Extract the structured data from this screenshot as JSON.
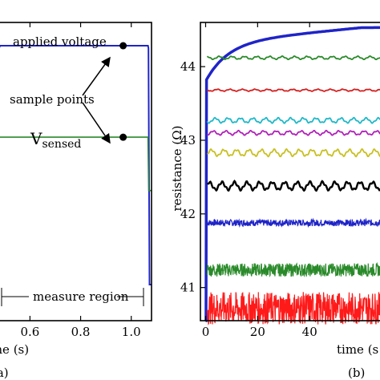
{
  "chart_data": [
    {
      "panel_label": "(a)",
      "type": "line",
      "xlabel": "time (s)",
      "xlim": [
        0.45,
        1.08
      ],
      "xticks": [
        "0.6",
        "0.8",
        "1.0"
      ],
      "xtick_values": [
        0.6,
        0.8,
        1.0
      ],
      "ylim": [
        0,
        1
      ],
      "series": [
        {
          "color": "#1f24c8",
          "x": [
            0.45,
            0.476,
            0.478,
            0.482,
            1.0,
            1.066,
            1.068,
            1.072,
            1.08
          ],
          "y": [
            0.0,
            0.0,
            0.93,
            0.94,
            0.94,
            0.94,
            0.93,
            0.0,
            0.0
          ]
        },
        {
          "color": "#2a8a2a",
          "x": [
            0.45,
            0.476,
            0.479,
            1.066,
            1.069,
            1.08
          ],
          "y": [
            0.37,
            0.37,
            0.58,
            0.58,
            0.37,
            0.37
          ]
        }
      ],
      "markers": [
        {
          "x": 0.968,
          "y": 0.94
        },
        {
          "x": 0.968,
          "y": 0.58
        }
      ],
      "annotations": {
        "applied_voltage": "applied voltage",
        "sample_points": "sample points",
        "v_main": "V",
        "v_sub": "sensed",
        "measure_region": "measure region"
      }
    },
    {
      "panel_label": "(b)",
      "type": "line",
      "xlabel": "time (s",
      "ylabel": "resistance (Ω)",
      "xlim": [
        -2,
        72
      ],
      "xticks": [
        "0",
        "20",
        "40"
      ],
      "xtick_values": [
        0,
        20,
        40
      ],
      "ylim": [
        40.55,
        44.6
      ],
      "yticks": [
        "41",
        "42",
        "43",
        "44"
      ],
      "ytick_values": [
        41,
        42,
        43,
        44
      ],
      "rise_curve": {
        "color": "#1f24c8",
        "start": 40.55,
        "jump_to": 43.8,
        "end": 44.53
      },
      "series": [
        {
          "color": "#1f24c8",
          "level": 44.53,
          "noise": 0.0,
          "style": "rise"
        },
        {
          "color": "#2a8a2a",
          "level": 44.12,
          "noise": 0.018,
          "style": "wave"
        },
        {
          "color": "#d42020",
          "level": 43.68,
          "noise": 0.012,
          "style": "wave"
        },
        {
          "color": "#1fb8c8",
          "level": 43.27,
          "noise": 0.03,
          "style": "wave"
        },
        {
          "color": "#b020b8",
          "level": 43.1,
          "noise": 0.025,
          "style": "wave"
        },
        {
          "color": "#c8c020",
          "level": 42.83,
          "noise": 0.04,
          "style": "wave"
        },
        {
          "color": "#000000",
          "level": 42.38,
          "noise": 0.05,
          "style": "wave"
        },
        {
          "color": "#1f24c8",
          "level": 41.88,
          "noise": 0.045,
          "style": "band"
        },
        {
          "color": "#2a8a2a",
          "level": 41.24,
          "noise": 0.09,
          "style": "band"
        },
        {
          "color": "#ff1a1a",
          "level": 40.72,
          "noise": 0.22,
          "style": "band"
        }
      ]
    }
  ]
}
